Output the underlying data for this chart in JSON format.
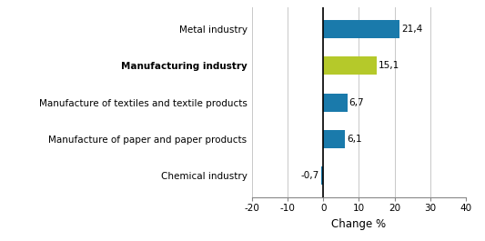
{
  "categories": [
    "Chemical industry",
    "Manufacture of paper and paper products",
    "Manufacture of textiles and textile products",
    "Manufacturing industry",
    "Metal industry"
  ],
  "values": [
    -0.7,
    6.1,
    6.7,
    15.1,
    21.4
  ],
  "bar_colors": [
    "#1a7aab",
    "#1a7aab",
    "#1a7aab",
    "#b5c92a",
    "#1a7aab"
  ],
  "bold_index": 3,
  "value_labels": [
    "-0,7",
    "6,1",
    "6,7",
    "15,1",
    "21,4"
  ],
  "xlabel": "Change %",
  "xlim": [
    -20,
    40
  ],
  "xticks": [
    -20,
    -10,
    0,
    10,
    20,
    30,
    40
  ],
  "background_color": "#ffffff",
  "bar_height": 0.5,
  "label_fontsize": 7.5,
  "tick_fontsize": 7.5,
  "xlabel_fontsize": 8.5,
  "value_label_fontsize": 7.5
}
